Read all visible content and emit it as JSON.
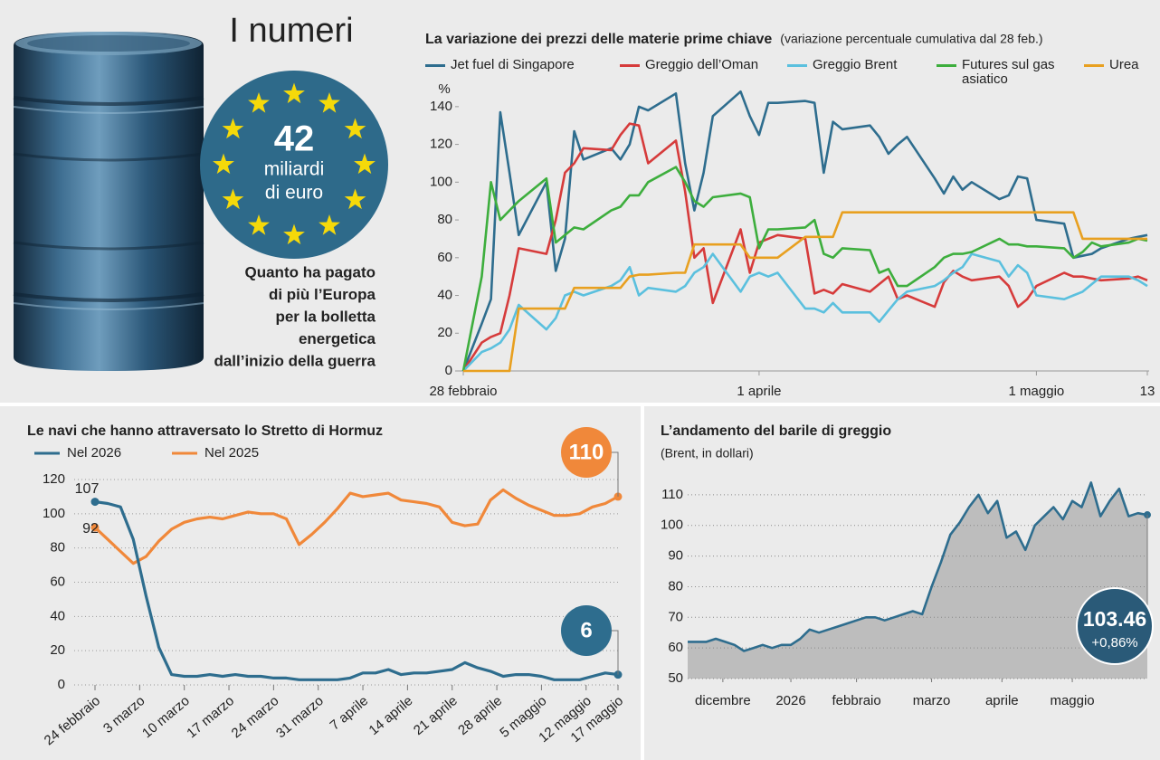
{
  "header": {
    "title": "I numeri",
    "highlight": {
      "value": 42,
      "unit_line1": "miliardi",
      "unit_line2": "di euro"
    },
    "caption": [
      "Quanto ha pagato",
      "di più l’Europa",
      "per la bolletta",
      "energetica",
      "dall’inizio della guerra"
    ]
  },
  "chart_data": [
    {
      "type": "line",
      "title": "La variazione dei prezzi delle materie prime chiave",
      "subtitle": "(variazione percentuale cumulativa dal 28 feb.)",
      "y_label": "%",
      "grid": false,
      "x": [
        0,
        2,
        3,
        4,
        5,
        6,
        9,
        10,
        11,
        12,
        13,
        16,
        17,
        18,
        19,
        20,
        23,
        24,
        25,
        26,
        27,
        30,
        31,
        32,
        33,
        34,
        37,
        38,
        39,
        40,
        41,
        44,
        45,
        46,
        47,
        48,
        51,
        52,
        53,
        54,
        55,
        58,
        59,
        60,
        61,
        62,
        65,
        66,
        67,
        68,
        69,
        72,
        73,
        74
      ],
      "xlim": [
        0,
        74
      ],
      "xticks": [
        {
          "value": 0,
          "label": "28 febbraio"
        },
        {
          "value": 32,
          "label": "1 aprile"
        },
        {
          "value": 62,
          "label": "1 maggio"
        },
        {
          "value": 74,
          "label": "13"
        }
      ],
      "ylim": [
        0,
        150
      ],
      "yticks": [
        0,
        20,
        40,
        60,
        80,
        100,
        120,
        140
      ],
      "series": [
        {
          "name": "Jet fuel di Singapore",
          "color": "#2e6d8e",
          "values": [
            0,
            25,
            38,
            137,
            105,
            72,
            100,
            53,
            70,
            127,
            112,
            118,
            112,
            120,
            140,
            138,
            147,
            110,
            85,
            105,
            135,
            148,
            135,
            125,
            142,
            142,
            143,
            142,
            105,
            132,
            128,
            130,
            124,
            115,
            120,
            124,
            102,
            94,
            103,
            96,
            100,
            91,
            93,
            103,
            102,
            80,
            78,
            60,
            61,
            62,
            65,
            70,
            71,
            72
          ]
        },
        {
          "name": "Greggio dell’Oman",
          "color": "#d63b3b",
          "values": [
            0,
            15,
            18,
            20,
            40,
            65,
            62,
            80,
            105,
            110,
            118,
            117,
            125,
            131,
            130,
            110,
            122,
            95,
            60,
            65,
            36,
            75,
            52,
            68,
            70,
            72,
            70,
            41,
            43,
            41,
            46,
            42,
            46,
            50,
            38,
            40,
            34,
            47,
            53,
            50,
            48,
            50,
            45,
            34,
            38,
            45,
            52,
            50,
            50,
            49,
            48,
            49,
            50,
            48
          ]
        },
        {
          "name": "Greggio Brent",
          "color": "#5bc0de",
          "values": [
            0,
            10,
            12,
            15,
            22,
            35,
            22,
            28,
            40,
            42,
            40,
            45,
            48,
            55,
            40,
            44,
            42,
            45,
            52,
            55,
            62,
            42,
            50,
            52,
            50,
            52,
            33,
            33,
            31,
            36,
            31,
            31,
            26,
            32,
            38,
            42,
            45,
            48,
            52,
            55,
            62,
            58,
            50,
            56,
            52,
            40,
            38,
            40,
            42,
            46,
            50,
            50,
            48,
            45
          ]
        },
        {
          "name": "Futures sul gas asiatico",
          "color": "#3dae3d",
          "values": [
            0,
            50,
            100,
            80,
            85,
            90,
            102,
            68,
            72,
            76,
            75,
            85,
            87,
            93,
            93,
            100,
            108,
            100,
            90,
            87,
            92,
            94,
            92,
            65,
            75,
            75,
            76,
            80,
            62,
            60,
            65,
            64,
            52,
            54,
            45,
            45,
            55,
            60,
            62,
            62,
            63,
            70,
            67,
            67,
            66,
            66,
            65,
            60,
            63,
            68,
            66,
            68,
            70,
            69
          ]
        },
        {
          "name": "Urea",
          "color": "#e8a020",
          "values": [
            0,
            0,
            0,
            0,
            0,
            33,
            33,
            33,
            33,
            44,
            44,
            44,
            44,
            50,
            51,
            51,
            52,
            52,
            67,
            67,
            67,
            67,
            60,
            60,
            60,
            60,
            71,
            71,
            71,
            71,
            84,
            84,
            84,
            84,
            84,
            84,
            84,
            84,
            84,
            84,
            84,
            84,
            84,
            84,
            84,
            84,
            84,
            84,
            70,
            70,
            70,
            70,
            70,
            70
          ]
        }
      ]
    },
    {
      "type": "line",
      "title": "Le navi che hanno attraversato lo Stretto di Hormuz",
      "grid": true,
      "x": [
        0,
        2,
        4,
        6,
        8,
        10,
        12,
        14,
        16,
        18,
        20,
        22,
        24,
        26,
        28,
        30,
        32,
        34,
        36,
        38,
        40,
        42,
        44,
        46,
        48,
        50,
        52,
        54,
        56,
        58,
        60,
        62,
        64,
        66,
        68,
        70,
        72,
        74,
        76,
        78,
        80,
        82
      ],
      "xlim": [
        0,
        82
      ],
      "xticks": [
        {
          "value": 0,
          "label": "24 febbraio"
        },
        {
          "value": 7,
          "label": "3 marzo"
        },
        {
          "value": 14,
          "label": "10 marzo"
        },
        {
          "value": 21,
          "label": "17 marzo"
        },
        {
          "value": 28,
          "label": "24 marzo"
        },
        {
          "value": 35,
          "label": "31 marzo"
        },
        {
          "value": 42,
          "label": "7 aprile"
        },
        {
          "value": 49,
          "label": "14 aprile"
        },
        {
          "value": 56,
          "label": "21 aprile"
        },
        {
          "value": 63,
          "label": "28 aprile"
        },
        {
          "value": 70,
          "label": "5 maggio"
        },
        {
          "value": 77,
          "label": "12 maggio"
        },
        {
          "value": 82,
          "label": "17 maggio"
        }
      ],
      "ylim": [
        0,
        120
      ],
      "yticks": [
        0,
        20,
        40,
        60,
        80,
        100,
        120
      ],
      "series": [
        {
          "name": "Nel 2026",
          "color": "#2e6d8e",
          "values": [
            107,
            106,
            104,
            85,
            52,
            22,
            6,
            5,
            5,
            6,
            5,
            6,
            5,
            5,
            4,
            4,
            3,
            3,
            3,
            3,
            4,
            7,
            7,
            9,
            6,
            7,
            7,
            8,
            9,
            13,
            10,
            8,
            5,
            6,
            6,
            5,
            3,
            3,
            3,
            5,
            7,
            6
          ]
        },
        {
          "name": "Nel 2025",
          "color": "#f0883a",
          "values": [
            92,
            85,
            78,
            71,
            75,
            84,
            91,
            95,
            97,
            98,
            97,
            99,
            101,
            100,
            100,
            97,
            82,
            88,
            95,
            103,
            112,
            110,
            111,
            112,
            108,
            107,
            106,
            104,
            95,
            93,
            94,
            108,
            114,
            109,
            105,
            102,
            99,
            99,
            100,
            104,
            106,
            110
          ]
        }
      ]
    },
    {
      "type": "area",
      "title": "L’andamento del barile di greggio",
      "subtitle": "(Brent, in dollari)",
      "grid": true,
      "color": "#2e6d8e",
      "fill": "#bdbdbd",
      "x": [
        0,
        4,
        8,
        12,
        16,
        20,
        24,
        28,
        32,
        36,
        40,
        44,
        48,
        52,
        56,
        60,
        64,
        68,
        72,
        76,
        80,
        84,
        88,
        92,
        96,
        100,
        104,
        108,
        112,
        116,
        120,
        124,
        128,
        132,
        136,
        140,
        144,
        148,
        152,
        156,
        160,
        164,
        168,
        172,
        176,
        180,
        184,
        188,
        192,
        196
      ],
      "xlim": [
        0,
        196
      ],
      "xticks": [
        {
          "value": 15,
          "label": "dicembre"
        },
        {
          "value": 44,
          "label": "2026"
        },
        {
          "value": 72,
          "label": "febbraio"
        },
        {
          "value": 104,
          "label": "marzo"
        },
        {
          "value": 134,
          "label": "aprile"
        },
        {
          "value": 164,
          "label": "maggio"
        }
      ],
      "ylim": [
        50,
        115
      ],
      "yticks": [
        50,
        60,
        70,
        80,
        90,
        100,
        110
      ],
      "values": [
        62,
        62,
        62,
        63,
        62,
        61,
        59,
        60,
        61,
        60,
        61,
        61,
        63,
        66,
        65,
        66,
        67,
        68,
        69,
        70,
        70,
        69,
        70,
        71,
        72,
        71,
        80,
        88,
        97,
        101,
        106,
        110,
        104,
        108,
        96,
        98,
        92,
        100,
        103,
        106,
        102,
        108,
        106,
        114,
        103,
        108,
        112,
        103,
        104,
        103.46
      ],
      "value_labels": {
        "49": "103.46"
      },
      "change_label": "+0,86%"
    }
  ]
}
